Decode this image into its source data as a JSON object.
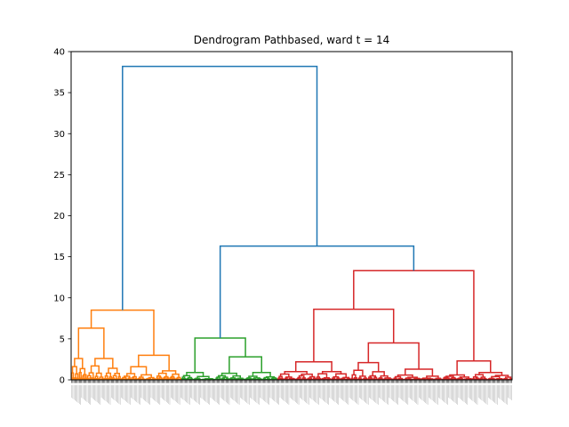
{
  "chart_data": {
    "type": "dendrogram",
    "title": "Dendrogram Pathbased, ward t = 14",
    "xlabel": "",
    "ylabel": "",
    "ylim": [
      0,
      40
    ],
    "yticks": [
      0,
      5,
      10,
      15,
      20,
      25,
      30,
      35,
      40
    ],
    "grid": false,
    "leaf_labels_note": "leaf index labels are printed at the bottom but are illegibly small",
    "colors": {
      "above_threshold": "#1f77b4",
      "cluster_1": "#ff7f0e",
      "cluster_2": "#2ca02c",
      "cluster_3": "#d62728"
    },
    "clusters": [
      {
        "color": "#ff7f0e",
        "leaf_range": [
          0,
          100
        ],
        "merge_height": 8.5,
        "subclusters": [
          {
            "leaf_range": [
              0,
              45
            ],
            "merge_height": 6.3,
            "children": [
              {
                "leaf_range": [
                  0,
                  14
                ],
                "merge_height": 2.6
              },
              {
                "leaf_range": [
                  14,
                  45
                ],
                "merge_height": 2.6
              }
            ]
          },
          {
            "leaf_range": [
              45,
              100
            ],
            "merge_height": 3.0,
            "children": [
              {
                "leaf_range": [
                  45,
                  77
                ],
                "merge_height": 1.6
              },
              {
                "leaf_range": [
                  77,
                  100
                ],
                "merge_height": 1.1
              }
            ]
          }
        ]
      },
      {
        "color": "#2ca02c",
        "leaf_range": [
          100,
          187
        ],
        "merge_height": 5.1,
        "subclusters": [
          {
            "leaf_range": [
              100,
              131
            ],
            "merge_height": 0.9
          },
          {
            "leaf_range": [
              131,
              187
            ],
            "merge_height": 2.8,
            "children": [
              {
                "leaf_range": [
                  131,
                  158
                ],
                "merge_height": 0.8
              },
              {
                "leaf_range": [
                  158,
                  187
                ],
                "merge_height": 0.9
              }
            ]
          }
        ]
      },
      {
        "color": "#d62728",
        "leaf_range": [
          187,
          400
        ],
        "merge_height": 13.3,
        "subclusters": [
          {
            "leaf_range": [
              187,
              337
            ],
            "merge_height": 8.6,
            "children": [
              {
                "leaf_range": [
                  187,
                  254
                ],
                "merge_height": 2.2,
                "children": [
                  {
                    "leaf_range": [
                      187,
                      222
                    ],
                    "merge_height": 1.0
                  },
                  {
                    "leaf_range": [
                      222,
                      254
                    ],
                    "merge_height": 1.0
                  }
                ]
              },
              {
                "leaf_range": [
                  254,
                  337
                ],
                "merge_height": 4.5,
                "children": [
                  {
                    "leaf_range": [
                      254,
                      292
                    ],
                    "merge_height": 2.1
                  },
                  {
                    "leaf_range": [
                      292,
                      337
                    ],
                    "merge_height": 1.3
                  }
                ]
              }
            ]
          },
          {
            "leaf_range": [
              337,
              400
            ],
            "merge_height": 2.3,
            "children": [
              {
                "leaf_range": [
                  337,
                  364
                ],
                "merge_height": 0.6
              },
              {
                "leaf_range": [
                  364,
                  400
                ],
                "merge_height": 0.9
              }
            ]
          }
        ]
      }
    ],
    "upper_links": [
      {
        "children": [
          "cluster_2",
          "cluster_3"
        ],
        "height": 16.3
      },
      {
        "children": [
          "cluster_1",
          "cluster_2+cluster_3"
        ],
        "height": 38.2
      }
    ],
    "leaf_count": 400
  }
}
